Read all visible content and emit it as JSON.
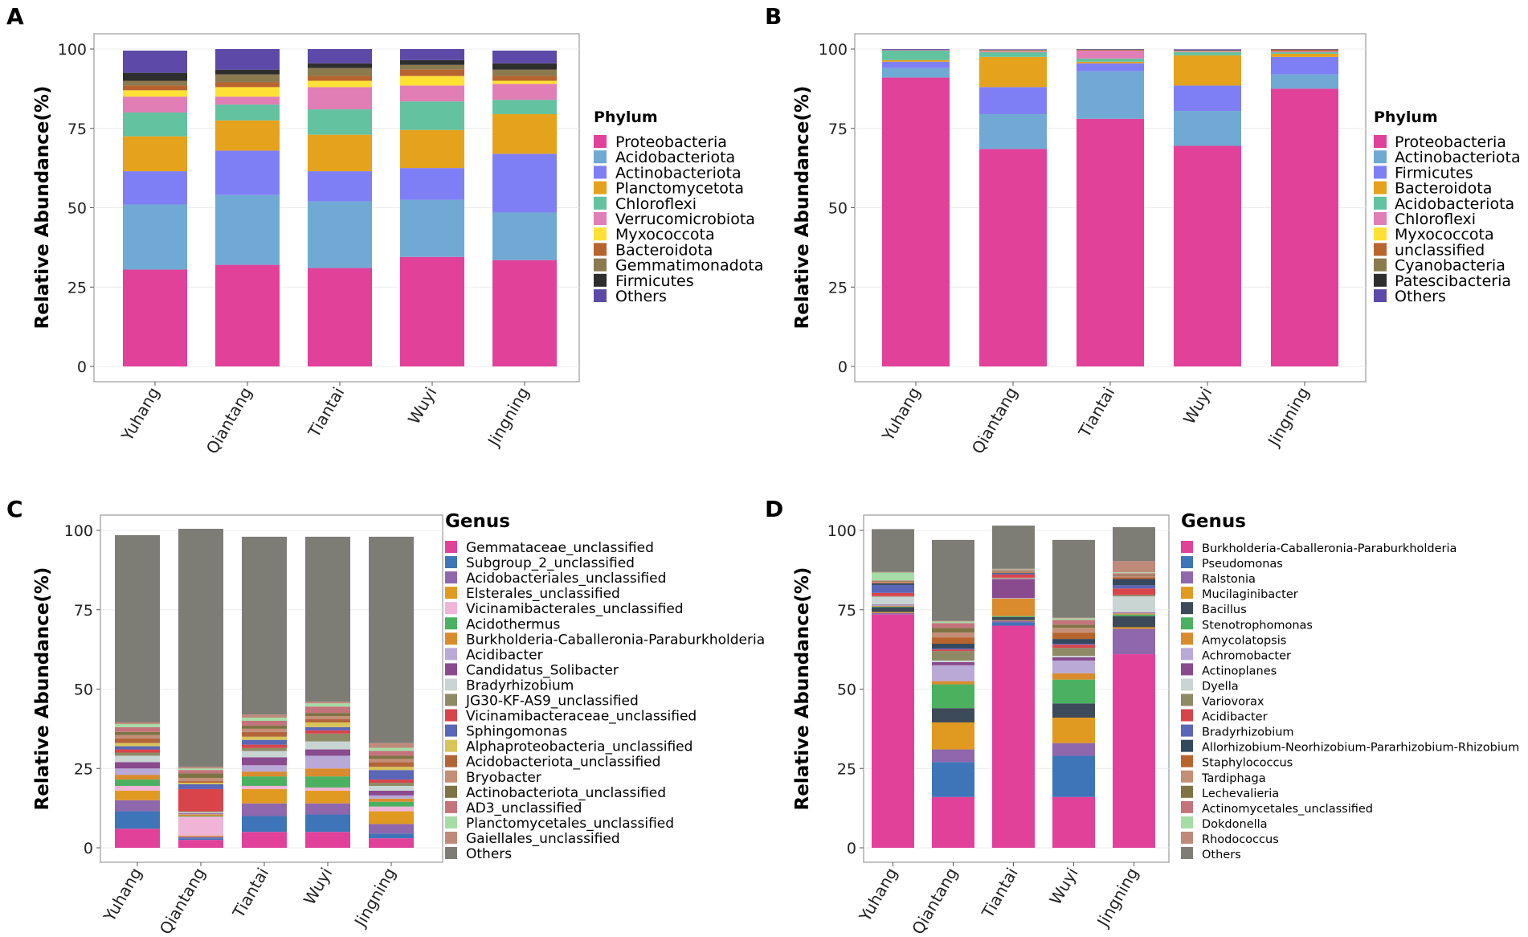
{
  "colors": {
    "pink": "#e2419a",
    "blue": "#3e74b8",
    "purple": "#8e67ad",
    "orange": "#e19a21",
    "lightpink": "#efb4d6",
    "green": "#4bb160",
    "darkorange": "#d98b2e",
    "lavender": "#b9a9d6",
    "darkpurple": "#8a4a8e",
    "lightgray": "#c9d5d2",
    "olive": "#8e8a66",
    "red": "#d9444a",
    "slate": "#5a66b8",
    "yellowish": "#d9c45a",
    "brownish": "#b3653a",
    "tan": "#c58e77",
    "khaki": "#7f7344",
    "rose": "#c4737b",
    "lightgreen": "#a6dca6",
    "salmon": "#c08a7a",
    "gray": "#7d7d76",
    "steel": "#70a9d3",
    "periwinkle": "#7f7ff5",
    "gold": "#e5a21c",
    "teal": "#63c29f",
    "violetpink": "#e07eb5",
    "yellow": "#ffe135",
    "rust": "#b8642f",
    "mudbrown": "#8c7a4f",
    "black": "#2e2e2e",
    "indigo": "#5d4aa8",
    "darkslate": "#3d4a5a",
    "red2": "#de5357",
    "midgray": "#cdd5d2"
  },
  "chart_data": [
    {
      "panel": "A",
      "type": "bar",
      "stacked": true,
      "ylabel": "Relative Abundance(%)",
      "ylim": [
        0,
        100
      ],
      "yticks": [
        0,
        25,
        50,
        75,
        100
      ],
      "categories": [
        "Yuhang",
        "Qiantang",
        "Tiantai",
        "Wuyi",
        "Jingning"
      ],
      "legend_title": "Phylum",
      "series": [
        {
          "name": "Proteobacteria",
          "color": "#e2419a",
          "values": [
            30.5,
            32,
            31,
            34.5,
            33.5
          ]
        },
        {
          "name": "Acidobacteriota",
          "color": "#70a9d3",
          "values": [
            20.5,
            22,
            21,
            18,
            15
          ]
        },
        {
          "name": "Actinobacteriota",
          "color": "#7f7ff5",
          "values": [
            10.5,
            14,
            9.5,
            10,
            18.5
          ]
        },
        {
          "name": "Planctomycetota",
          "color": "#e5a21c",
          "values": [
            11,
            9.5,
            11.5,
            12,
            12.5
          ]
        },
        {
          "name": "Chloroflexi",
          "color": "#63c29f",
          "values": [
            7.5,
            5,
            8,
            9,
            4.5
          ]
        },
        {
          "name": "Verrucomicrobiota",
          "color": "#e07eb5",
          "values": [
            5,
            2.5,
            7,
            5,
            5
          ]
        },
        {
          "name": "Myxococcota",
          "color": "#ffe135",
          "values": [
            2,
            3,
            2,
            3,
            1
          ]
        },
        {
          "name": "Bacteroidota",
          "color": "#b8642f",
          "values": [
            1.5,
            1.5,
            1.5,
            2,
            1.5
          ]
        },
        {
          "name": "Gemmatimonadota",
          "color": "#8c7a4f",
          "values": [
            1.5,
            2.5,
            2.5,
            1.5,
            2
          ]
        },
        {
          "name": "Firmicutes",
          "color": "#2e2e2e",
          "values": [
            2.5,
            1.5,
            1.5,
            1.5,
            2
          ]
        },
        {
          "name": "Others",
          "color": "#5d4aa8",
          "values": [
            7,
            6.5,
            4.5,
            3.5,
            4
          ]
        }
      ]
    },
    {
      "panel": "B",
      "type": "bar",
      "stacked": true,
      "ylabel": "Relative Abundance(%)",
      "ylim": [
        0,
        100
      ],
      "yticks": [
        0,
        25,
        50,
        75,
        100
      ],
      "categories": [
        "Yuhang",
        "Qiantang",
        "Tiantai",
        "Wuyi",
        "Jingning"
      ],
      "legend_title": "Phylum",
      "series": [
        {
          "name": "Proteobacteria",
          "color": "#e2419a",
          "values": [
            91,
            68.5,
            78,
            69.5,
            87.5
          ]
        },
        {
          "name": "Actinobacteriota",
          "color": "#70a9d3",
          "values": [
            3,
            11,
            15,
            11,
            4.5
          ]
        },
        {
          "name": "Firmicutes",
          "color": "#7f7ff5",
          "values": [
            2,
            8.5,
            2.5,
            8,
            5.5
          ]
        },
        {
          "name": "Bacteroidota",
          "color": "#e5a21c",
          "values": [
            0.5,
            9.5,
            0.5,
            9.5,
            1
          ]
        },
        {
          "name": "Acidobacteriota",
          "color": "#63c29f",
          "values": [
            3,
            1.5,
            1,
            1,
            0.5
          ]
        },
        {
          "name": "Chloroflexi",
          "color": "#e07eb5",
          "values": [
            0.2,
            0.3,
            2.5,
            0.2,
            0.3
          ]
        },
        {
          "name": "Myxococcota",
          "color": "#ffe135",
          "values": [
            0,
            0.1,
            0,
            0.1,
            0
          ]
        },
        {
          "name": "unclassified",
          "color": "#b8642f",
          "values": [
            0,
            0.1,
            0.2,
            0.1,
            0.5
          ]
        },
        {
          "name": "Cyanobacteria",
          "color": "#8c7a4f",
          "values": [
            0,
            0.1,
            0.1,
            0.1,
            0
          ]
        },
        {
          "name": "Patescibacteria",
          "color": "#2e2e2e",
          "values": [
            0.1,
            0.1,
            0.1,
            0.1,
            0.1
          ]
        },
        {
          "name": "Others",
          "color": "#5d4aa8",
          "values": [
            0.2,
            0.2,
            0.1,
            0.3,
            0.1
          ]
        }
      ]
    },
    {
      "panel": "C",
      "type": "bar",
      "stacked": true,
      "ylabel": "Relative Abundance(%)",
      "ylim": [
        0,
        100
      ],
      "yticks": [
        0,
        25,
        50,
        75,
        100
      ],
      "categories": [
        "Yuhang",
        "Qiantang",
        "Tiantai",
        "Wuyi",
        "Jingning"
      ],
      "legend_title": "Genus",
      "series": [
        {
          "name": "Gemmataceae_unclassified",
          "color": "#e2419a",
          "values": [
            6,
            2.5,
            5,
            5,
            3
          ]
        },
        {
          "name": "Subgroup_2_unclassified",
          "color": "#3e74b8",
          "values": [
            5.5,
            0.5,
            5,
            5.5,
            1.5
          ]
        },
        {
          "name": "Acidobacteriales_unclassified",
          "color": "#8e67ad",
          "values": [
            3.5,
            0.5,
            4,
            3.5,
            3
          ]
        },
        {
          "name": "Elsterales_unclassified",
          "color": "#e19a21",
          "values": [
            3,
            0.3,
            4.5,
            4,
            4
          ]
        },
        {
          "name": "Vicinamibacterales_unclassified",
          "color": "#efb4d6",
          "values": [
            1.5,
            6,
            1,
            1,
            1.5
          ]
        },
        {
          "name": "Acidothermus",
          "color": "#4bb160",
          "values": [
            2,
            0.2,
            3,
            3.5,
            1.5
          ]
        },
        {
          "name": "Burkholderia-Caballeronia-Paraburkholderia",
          "color": "#d98b2e",
          "values": [
            1.5,
            0.5,
            1.5,
            2.5,
            1
          ]
        },
        {
          "name": "Acidibacter",
          "color": "#b9a9d6",
          "values": [
            2,
            0.2,
            2,
            4,
            1
          ]
        },
        {
          "name": "Candidatus_Solibacter",
          "color": "#8a4a8e",
          "values": [
            2,
            0.2,
            2.5,
            2,
            1.5
          ]
        },
        {
          "name": "Bradyrhizobium",
          "color": "#c9d5d2",
          "values": [
            2,
            0.3,
            2,
            2.5,
            1.5
          ]
        },
        {
          "name": "JG30-KF-AS9_unclassified",
          "color": "#8e8a66",
          "values": [
            1,
            0.3,
            1,
            2.5,
            1
          ]
        },
        {
          "name": "Vicinamibacteraceae_unclassified",
          "color": "#d9444a",
          "values": [
            1,
            7,
            1,
            1,
            1
          ]
        },
        {
          "name": "Sphingomonas",
          "color": "#5a66b8",
          "values": [
            1,
            1.5,
            1.5,
            1,
            3
          ]
        },
        {
          "name": "Alphaproteobacteria_unclassified",
          "color": "#d9c45a",
          "values": [
            1,
            0.5,
            1,
            1.5,
            1
          ]
        },
        {
          "name": "Acidobacteriota_unclassified",
          "color": "#b3653a",
          "values": [
            1.5,
            0.5,
            1.5,
            1,
            1.5
          ]
        },
        {
          "name": "Bryobacter",
          "color": "#c58e77",
          "values": [
            1,
            1,
            1,
            1,
            1
          ]
        },
        {
          "name": "Actinobacteriota_unclassified",
          "color": "#7f7344",
          "values": [
            1,
            1.5,
            1,
            1,
            1
          ]
        },
        {
          "name": "AD3_unclassified",
          "color": "#c4737b",
          "values": [
            1.5,
            1,
            1.5,
            2,
            1.5
          ]
        },
        {
          "name": "Planctomycetales_unclassified",
          "color": "#a6dca6",
          "values": [
            1,
            0.5,
            1,
            1,
            1
          ]
        },
        {
          "name": "Gaiellales_unclassified",
          "color": "#c08a7a",
          "values": [
            0.5,
            0.5,
            1,
            0.5,
            1.5
          ]
        },
        {
          "name": "Others",
          "color": "#7d7d76",
          "values": [
            59,
            75,
            56,
            52,
            65
          ]
        }
      ]
    },
    {
      "panel": "D",
      "type": "bar",
      "stacked": true,
      "ylabel": "Relative Abundance(%)",
      "ylim": [
        0,
        100
      ],
      "yticks": [
        0,
        25,
        50,
        75,
        100
      ],
      "categories": [
        "Yuhang",
        "Qiantang",
        "Tiantai",
        "Wuyi",
        "Jingning"
      ],
      "legend_title": "Genus",
      "series": [
        {
          "name": "Burkholderia-Caballeronia-Paraburkholderia",
          "color": "#e2419a",
          "values": [
            73.5,
            16,
            70,
            16,
            61
          ]
        },
        {
          "name": "Pseudomonas",
          "color": "#3e74b8",
          "values": [
            0,
            11,
            1,
            13,
            0
          ]
        },
        {
          "name": "Ralstonia",
          "color": "#8e67ad",
          "values": [
            0.5,
            4,
            0.5,
            4,
            8
          ]
        },
        {
          "name": "Mucilaginibacter",
          "color": "#e19a21",
          "values": [
            0.3,
            8.5,
            0.2,
            8,
            0.5
          ]
        },
        {
          "name": "Bacillus",
          "color": "#3d4a5a",
          "values": [
            1.5,
            4.5,
            1,
            4.5,
            3.5
          ]
        },
        {
          "name": "Stenotrophomonas",
          "color": "#4bb160",
          "values": [
            0.2,
            7.5,
            0.3,
            7.5,
            0.5
          ]
        },
        {
          "name": "Amycolatopsis",
          "color": "#d98b2e",
          "values": [
            0.2,
            1,
            5.5,
            2,
            0.3
          ]
        },
        {
          "name": "Achromobacter",
          "color": "#b9a9d6",
          "values": [
            0.2,
            5,
            0.2,
            4,
            0.2
          ]
        },
        {
          "name": "Actinoplanes",
          "color": "#8a4a8e",
          "values": [
            0.2,
            1,
            6,
            1,
            0.2
          ]
        },
        {
          "name": "Dyella",
          "color": "#c9d5d2",
          "values": [
            2.5,
            0.5,
            0.2,
            0.5,
            5
          ]
        },
        {
          "name": "Variovorax",
          "color": "#8e8a66",
          "values": [
            0.2,
            3,
            0.2,
            2.5,
            0.5
          ]
        },
        {
          "name": "Acidibacter",
          "color": "#d9444a",
          "values": [
            1,
            0.5,
            1,
            1,
            2
          ]
        },
        {
          "name": "Bradyrhizobium",
          "color": "#5a66b8",
          "values": [
            2.5,
            0.3,
            0.3,
            0.3,
            1
          ]
        },
        {
          "name": "Allorhizobium-Neorhizobium-Pararhizobium-Rhizobium",
          "color": "#34495e",
          "values": [
            0.5,
            1.5,
            0.2,
            1.5,
            2
          ]
        },
        {
          "name": "Staphylococcus",
          "color": "#b8642f",
          "values": [
            0.2,
            2,
            0.2,
            2,
            0.5
          ]
        },
        {
          "name": "Tardiphaga",
          "color": "#c58e77",
          "values": [
            0.3,
            1.5,
            0.2,
            1.5,
            0.5
          ]
        },
        {
          "name": "Lechevalieria",
          "color": "#7f7344",
          "values": [
            0.2,
            1.5,
            0.2,
            1,
            0.3
          ]
        },
        {
          "name": "Actinomycetales_unclassified",
          "color": "#c4737b",
          "values": [
            0.2,
            1.5,
            0.3,
            1.5,
            0.5
          ]
        },
        {
          "name": "Dokdonella",
          "color": "#a6dca6",
          "values": [
            2.5,
            0.5,
            0.2,
            0.5,
            0.3
          ]
        },
        {
          "name": "Rhodococcus",
          "color": "#c08a7a",
          "values": [
            0.2,
            0.2,
            0.2,
            0.2,
            3.5
          ]
        },
        {
          "name": "Others",
          "color": "#7d7d76",
          "values": [
            13.5,
            25.5,
            13.6,
            24.5,
            10.7
          ]
        }
      ]
    }
  ]
}
